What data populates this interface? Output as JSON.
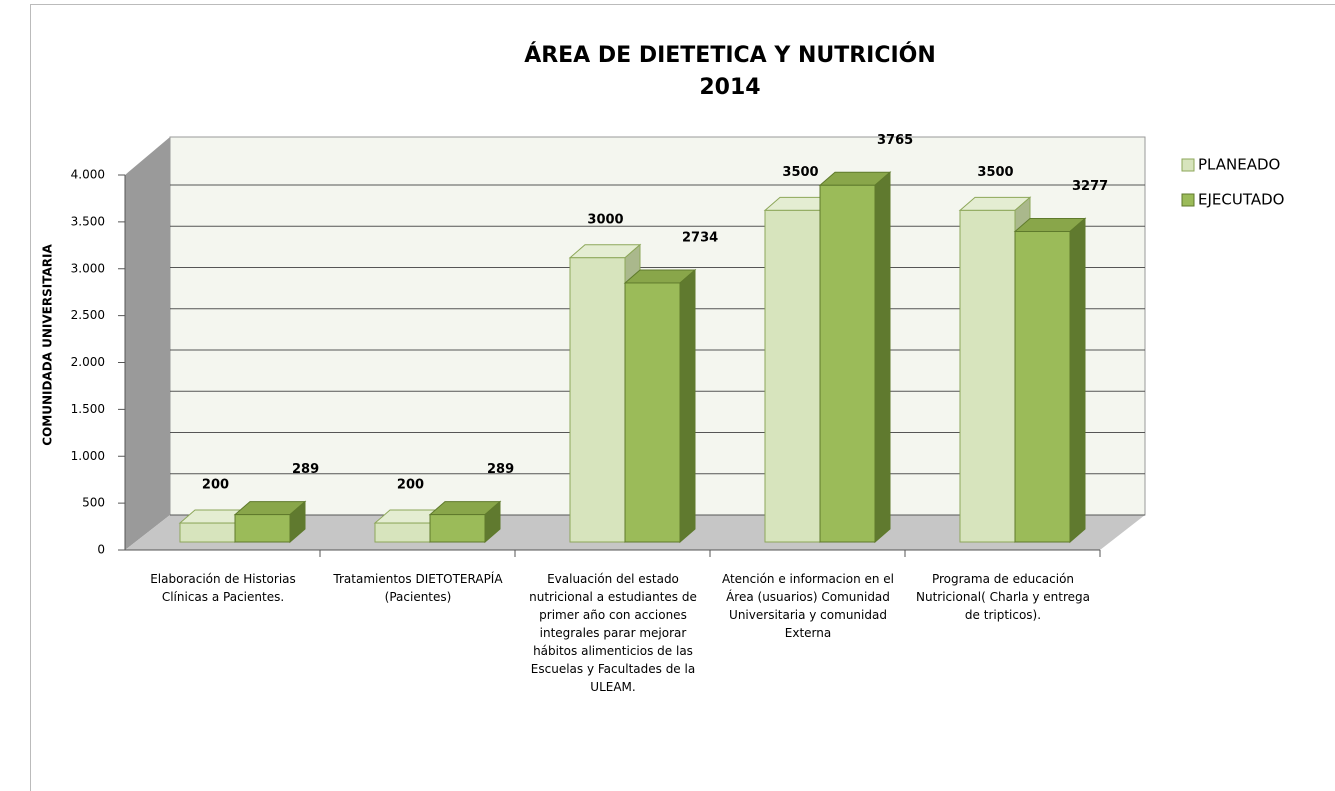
{
  "chart_data": {
    "type": "bar3d",
    "title": "ÁREA DE DIETETICA Y NUTRICIÓN\n2014",
    "y_axis_label": "COMUNIDADA UNIVERSITARIA",
    "categories": [
      "Elaboración de Historias Clínicas a Pacientes.",
      "Tratamientos DIETOTERAPÍA (Pacientes)",
      "Evaluación del estado nutricional a estudiantes de primer año con acciones integrales parar mejorar hábitos alimenticios de las Escuelas y Facultades de la ULEAM.",
      "Atención e informacion en el Área (usuarios) Comunidad Universitaria y comunidad Externa",
      "Programa de educación Nutricional( Charla y entrega de tripticos)."
    ],
    "series": [
      {
        "name": "PLANEADO",
        "color": "#d7e4bd",
        "values": [
          200,
          200,
          3000,
          3500,
          3500
        ]
      },
      {
        "name": "EJECUTADO",
        "color": "#9bbb59",
        "values": [
          289,
          289,
          2734,
          3765,
          3277
        ]
      }
    ],
    "ylim": [
      0,
      4000
    ],
    "yticks": [
      0,
      500,
      {
        "value": 1000,
        "label": "1.000"
      },
      {
        "value": 1500,
        "label": "1.500"
      },
      {
        "value": 2000,
        "label": "2.000"
      },
      {
        "value": 2500,
        "label": "2.500"
      },
      {
        "value": 3000,
        "label": "3.000"
      },
      {
        "value": 3500,
        "label": "3.500"
      },
      {
        "value": 4000,
        "label": "4.000"
      }
    ],
    "grid": true,
    "legend": "right"
  }
}
